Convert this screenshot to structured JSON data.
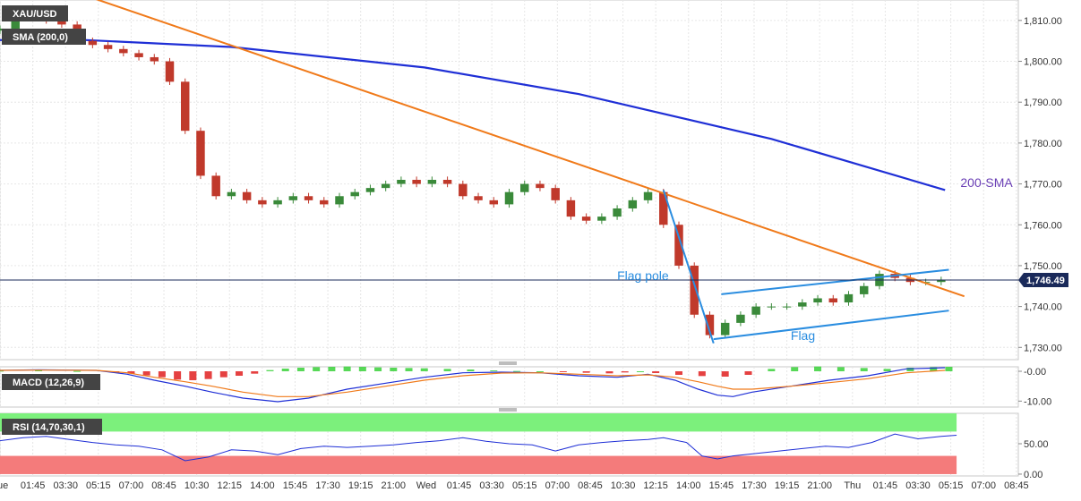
{
  "chart_data": [
    {
      "type": "candlestick",
      "title": "XAU/USD",
      "series": [
        {
          "name": "SMA (200,0)",
          "color": "#1f2fd6",
          "x": [
            0,
            20,
            60,
            110,
            150,
            200,
            245
          ],
          "values": [
            1805.2,
            1805.3,
            1803.5,
            1798.5,
            1792.0,
            1781.0,
            1768.5
          ]
        }
      ],
      "price_label": "1,746.49",
      "current_price": 1746.49,
      "ylim": [
        1727,
        1815
      ],
      "yticks": [
        1730,
        1740,
        1750,
        1760,
        1770,
        1780,
        1790,
        1800,
        1810
      ],
      "ytick_labels": [
        "1,730.00",
        "1,740.00",
        "1,750.00",
        "1,760.00",
        "1,770.00",
        "1,780.00",
        "1,790.00",
        "1,800.00",
        "1,810.00"
      ],
      "xlim": [
        0,
        264
      ],
      "candles": {
        "x": [
          0,
          4,
          8,
          12,
          16,
          20,
          24,
          28,
          32,
          36,
          40,
          44,
          48,
          52,
          56,
          60,
          64,
          68,
          72,
          76,
          80,
          84,
          88,
          92,
          96,
          100,
          104,
          108,
          112,
          116,
          120,
          124,
          128,
          132,
          136,
          140,
          144,
          148,
          152,
          156,
          160,
          164,
          168,
          172,
          176,
          180,
          184,
          188,
          192,
          196,
          200,
          204,
          208,
          212,
          216,
          220,
          224,
          228,
          232,
          236,
          240,
          244
        ],
        "close": [
          1808,
          1811,
          1811,
          1810,
          1809,
          1805,
          1804,
          1803,
          1802,
          1801,
          1800,
          1795,
          1783,
          1772,
          1767,
          1768,
          1766,
          1765,
          1766,
          1767,
          1766,
          1765,
          1767,
          1768,
          1769,
          1770,
          1771,
          1770,
          1771,
          1770,
          1767,
          1766,
          1765,
          1768,
          1770,
          1769,
          1766,
          1762,
          1761,
          1762,
          1764,
          1766,
          1768,
          1760,
          1750,
          1738,
          1733,
          1736,
          1738,
          1740,
          1740,
          1740,
          1741,
          1742,
          1741,
          1743,
          1745,
          1748,
          1747,
          1746,
          1746,
          1746.5
        ],
        "up_color": "#3a8a3a",
        "down_color": "#c0392b"
      },
      "annotations": [
        {
          "text": "Flag pole",
          "color": "#2a8de0"
        },
        {
          "text": "Flag",
          "color": "#2a8de0"
        },
        {
          "text": "200-SMA",
          "color": "#6a3fb5"
        }
      ],
      "lines": {
        "downtrend": {
          "color": "#f07a1a",
          "from": [
            24,
            1815.5
          ],
          "to": [
            250,
            1742.5
          ]
        },
        "flag_pole": {
          "color": "#2a8de0",
          "from": [
            172,
            1768.5
          ],
          "to": [
            185,
            1731
          ]
        },
        "flag_upper": {
          "color": "#2a8de0",
          "from": [
            187,
            1743
          ],
          "to": [
            246,
            1749
          ]
        },
        "flag_lower": {
          "color": "#2a8de0",
          "from": [
            185,
            1732
          ],
          "to": [
            246,
            1739
          ]
        }
      },
      "grid": true
    },
    {
      "type": "histogram",
      "title": "MACD (12,26,9)",
      "ylim": [
        -12,
        1.5
      ],
      "yticks": [
        0,
        -10
      ],
      "ytick_labels": [
        "-0.00",
        "-10.00"
      ],
      "xlim": [
        0,
        264
      ],
      "series": [
        {
          "name": "macd",
          "color": "#1f2fd6",
          "x": [
            0,
            10,
            25,
            33,
            40,
            48,
            55,
            63,
            72,
            80,
            90,
            100,
            110,
            120,
            130,
            140,
            150,
            160,
            168,
            175,
            181,
            186,
            190,
            195,
            205,
            215,
            225,
            235,
            245
          ],
          "values": [
            0.3,
            0.5,
            0.3,
            -1,
            -3,
            -5,
            -7,
            -9,
            -10.2,
            -9,
            -6,
            -4,
            -2,
            -0.5,
            -0.3,
            -0.5,
            -1.5,
            -2,
            -1,
            -3,
            -6,
            -8,
            -8.5,
            -7,
            -5,
            -3,
            -1.5,
            0.8,
            1.2
          ]
        },
        {
          "name": "signal",
          "color": "#f07a1a",
          "x": [
            0,
            10,
            25,
            33,
            40,
            48,
            55,
            63,
            72,
            80,
            90,
            100,
            110,
            120,
            130,
            140,
            150,
            160,
            168,
            175,
            181,
            186,
            190,
            195,
            205,
            215,
            225,
            235,
            245
          ],
          "values": [
            0.3,
            0.4,
            0.3,
            -0.5,
            -2,
            -3.5,
            -5,
            -7,
            -8.5,
            -8.5,
            -7,
            -5,
            -3,
            -1.5,
            -0.6,
            -0.5,
            -1,
            -1.5,
            -1.2,
            -2,
            -3.5,
            -5,
            -6,
            -6,
            -5,
            -3.8,
            -2.5,
            -0.5,
            0.3
          ]
        }
      ],
      "histogram": {
        "x": [
          0,
          10,
          20,
          30,
          34,
          38,
          42,
          46,
          50,
          54,
          58,
          62,
          66,
          70,
          74,
          78,
          82,
          86,
          90,
          94,
          98,
          102,
          106,
          110,
          116,
          122,
          128,
          134,
          140,
          146,
          152,
          158,
          162,
          166,
          170,
          176,
          182,
          188,
          194,
          200,
          206,
          212,
          218,
          224,
          230,
          236,
          242,
          246
        ],
        "values": [
          0.2,
          0.3,
          0.1,
          -0.4,
          -0.8,
          -1.4,
          -2,
          -2.8,
          -3,
          -2.6,
          -2,
          -1.5,
          -0.8,
          0.4,
          0.9,
          1.2,
          1.4,
          1.5,
          1.6,
          1.5,
          1.3,
          1.2,
          1.1,
          1,
          0.8,
          0.6,
          0.3,
          0.1,
          0,
          -0.3,
          -0.5,
          -0.7,
          -0.4,
          0,
          -0.6,
          -1.2,
          -1.6,
          -1.8,
          -1.2,
          0.8,
          1.4,
          1.6,
          1.4,
          1.1,
          0.8,
          1.2,
          1.4,
          1.5
        ],
        "up_color": "#3ad13a",
        "down_color": "#e02020"
      }
    },
    {
      "type": "line",
      "title": "RSI (14,70,30,1)",
      "ylim": [
        -3,
        100
      ],
      "yticks": [
        50,
        0
      ],
      "ytick_labels": [
        "50.00",
        "0.00"
      ],
      "xlim": [
        0,
        264
      ],
      "bands": {
        "overbought": 70,
        "oversold": 30,
        "upper_color": "#7cf07c",
        "lower_color": "#f47b7b"
      },
      "series": [
        {
          "name": "rsi",
          "color": "#1f2fd6",
          "x": [
            0,
            6,
            12,
            18,
            24,
            30,
            36,
            42,
            48,
            54,
            60,
            66,
            72,
            78,
            84,
            90,
            96,
            102,
            108,
            114,
            120,
            126,
            132,
            138,
            144,
            150,
            156,
            162,
            168,
            172,
            178,
            182,
            186,
            190,
            196,
            202,
            208,
            214,
            220,
            226,
            232,
            238,
            244,
            248
          ],
          "values": [
            55,
            60,
            62,
            57,
            52,
            48,
            46,
            40,
            22,
            28,
            40,
            38,
            32,
            42,
            46,
            44,
            46,
            48,
            52,
            55,
            60,
            54,
            50,
            48,
            38,
            48,
            52,
            55,
            57,
            60,
            52,
            30,
            25,
            30,
            34,
            38,
            42,
            46,
            44,
            52,
            66,
            58,
            62,
            64
          ]
        }
      ]
    }
  ],
  "x_axis": {
    "labels": [
      "Tue",
      "01:45",
      "03:30",
      "05:15",
      "07:00",
      "08:45",
      "10:30",
      "12:15",
      "14:00",
      "15:45",
      "17:30",
      "19:15",
      "21:00",
      "Wed",
      "01:45",
      "03:30",
      "05:15",
      "07:00",
      "08:45",
      "10:30",
      "12:15",
      "14:00",
      "15:45",
      "17:30",
      "19:15",
      "21:00",
      "Thu",
      "01:45",
      "03:30",
      "05:15",
      "07:00",
      "08:45"
    ],
    "positions": [
      0,
      8.5,
      17,
      25.5,
      34,
      42.5,
      51,
      59.5,
      68,
      76.5,
      85,
      93.5,
      102,
      110.5,
      119,
      127.5,
      136,
      144.5,
      153,
      161.5,
      170,
      178.5,
      187,
      195.5,
      204,
      212.5,
      221,
      229.5,
      238,
      246.5,
      255,
      263.5
    ]
  }
}
